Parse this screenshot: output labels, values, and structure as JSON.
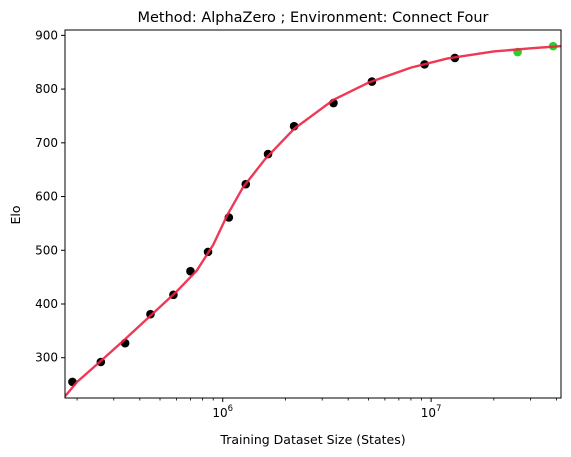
{
  "chart_data": {
    "type": "scatter",
    "title": "Method: AlphaZero ; Environment: Connect Four",
    "xlabel": "Training Dataset Size (States)",
    "ylabel": "Elo",
    "x_scale": "log",
    "xlim": [
      175000,
      42000000
    ],
    "ylim": [
      225,
      910
    ],
    "x_ticks": [
      {
        "value": 1000000,
        "base": "10",
        "exp": "6"
      },
      {
        "value": 10000000,
        "base": "10",
        "exp": "7"
      }
    ],
    "y_ticks": [
      300,
      400,
      500,
      600,
      700,
      800,
      900
    ],
    "grid": false,
    "series": [
      {
        "kind": "scatter",
        "color": "#000000",
        "points": [
          {
            "x": 190000,
            "y": 255
          },
          {
            "x": 260000,
            "y": 292
          },
          {
            "x": 340000,
            "y": 327
          },
          {
            "x": 450000,
            "y": 381
          },
          {
            "x": 580000,
            "y": 417
          },
          {
            "x": 700000,
            "y": 461
          },
          {
            "x": 850000,
            "y": 497
          },
          {
            "x": 1070000,
            "y": 561
          },
          {
            "x": 1290000,
            "y": 623
          },
          {
            "x": 1650000,
            "y": 679
          },
          {
            "x": 2200000,
            "y": 731
          },
          {
            "x": 3400000,
            "y": 774
          },
          {
            "x": 5200000,
            "y": 814
          },
          {
            "x": 9300000,
            "y": 846
          },
          {
            "x": 13000000,
            "y": 858
          }
        ]
      },
      {
        "kind": "scatter",
        "color": "#2ecc2e",
        "points": [
          {
            "x": 26000000,
            "y": 869
          },
          {
            "x": 38500000,
            "y": 880
          }
        ]
      },
      {
        "kind": "line",
        "color": "#ee2244",
        "points": [
          {
            "x": 175000,
            "y": 228
          },
          {
            "x": 200000,
            "y": 255
          },
          {
            "x": 250000,
            "y": 288
          },
          {
            "x": 330000,
            "y": 330
          },
          {
            "x": 450000,
            "y": 378
          },
          {
            "x": 600000,
            "y": 423
          },
          {
            "x": 750000,
            "y": 462
          },
          {
            "x": 900000,
            "y": 510
          },
          {
            "x": 1050000,
            "y": 565
          },
          {
            "x": 1250000,
            "y": 617
          },
          {
            "x": 1600000,
            "y": 670
          },
          {
            "x": 2200000,
            "y": 726
          },
          {
            "x": 3400000,
            "y": 780
          },
          {
            "x": 5000000,
            "y": 812
          },
          {
            "x": 8000000,
            "y": 840
          },
          {
            "x": 12000000,
            "y": 857
          },
          {
            "x": 20000000,
            "y": 870
          },
          {
            "x": 30000000,
            "y": 876
          },
          {
            "x": 42000000,
            "y": 880
          }
        ]
      }
    ]
  }
}
